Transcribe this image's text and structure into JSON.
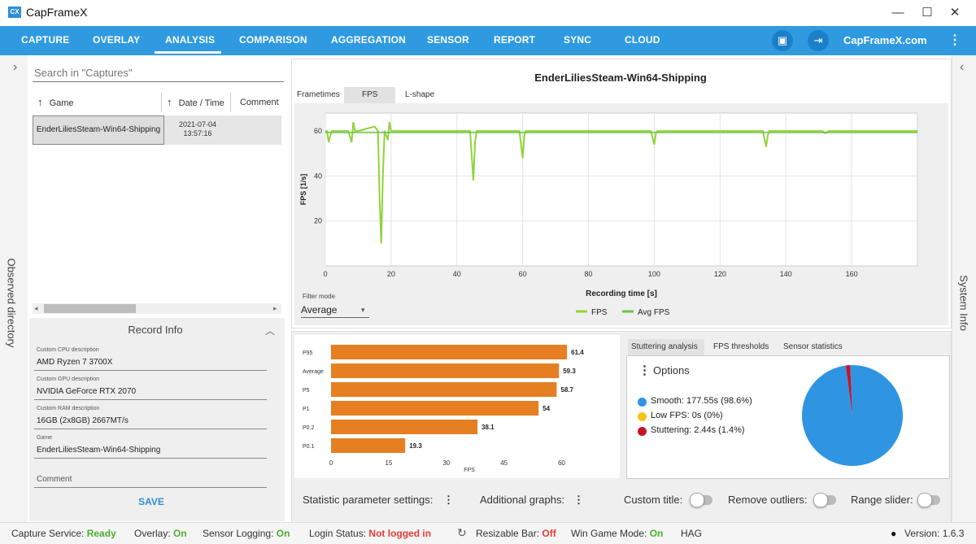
{
  "window": {
    "title": "CapFrameX",
    "logo_text": "CX",
    "minimize": "—",
    "maximize": "☐",
    "close": "✕"
  },
  "nav": {
    "items": [
      "CAPTURE",
      "OVERLAY",
      "ANALYSIS",
      "COMPARISON",
      "AGGREGATION",
      "SENSOR",
      "REPORT",
      "SYNC",
      "CLOUD"
    ],
    "active": "ANALYSIS",
    "site": "CapFrameX.com",
    "icon_copy": "▣",
    "icon_login": "⇥",
    "menu": "⋮"
  },
  "left": {
    "collapse_arrow": "›",
    "observed_directory": "Observed directory",
    "search_placeholder": "Search in \"Captures\"",
    "col_game": "Game",
    "col_date": "Date / Time",
    "col_comment": "Comment",
    "sort_arrow": "↑",
    "capture": {
      "game": "EnderLiliesSteam-Win64-Shipping",
      "date": "2021-07-04",
      "time": "13:57:16"
    },
    "scroll_left": "◂",
    "scroll_right": "▸",
    "record_info_title": "Record Info",
    "record_chevron": "︿",
    "fields": [
      {
        "label": "Custom CPU description",
        "value": "AMD Ryzen 7 3700X"
      },
      {
        "label": "Custom GPU description",
        "value": "NVIDIA GeForce RTX 2070"
      },
      {
        "label": "Custom RAM description",
        "value": "16GB (2x8GB) 2667MT/s"
      },
      {
        "label": "Game",
        "value": "EnderLiliesSteam-Win64-Shipping"
      },
      {
        "label": "",
        "value": "Comment"
      }
    ],
    "save": "SAVE"
  },
  "right": {
    "collapse_arrow": "‹",
    "system_info": "System Info"
  },
  "chart_tabs": [
    "Frametimes",
    "FPS",
    "L-shape"
  ],
  "filter": {
    "label": "Filter mode",
    "value": "Average",
    "arrow": "▾"
  },
  "line_legend": [
    "FPS",
    "Avg FPS"
  ],
  "stutter_tabs": [
    "Stuttering analysis",
    "FPS thresholds",
    "Sensor statistics"
  ],
  "options_label": "Options",
  "options_dots": "⋮",
  "stutter_legend": [
    {
      "label": "Smooth:  177.55s (98.6%)",
      "color": "#2f95e3"
    },
    {
      "label": "Low FPS:  0s (0%)",
      "color": "#f5c518"
    },
    {
      "label": "Stuttering:  2.44s (1.4%)",
      "color": "#c4152a"
    }
  ],
  "settings": {
    "statistic": "Statistic parameter settings:",
    "additional": "Additional graphs:",
    "custom_title": "Custom title:",
    "remove_outliers": "Remove outliers:",
    "range_slider": "Range slider:",
    "dots": "⋮"
  },
  "status": {
    "capture_label": "Capture Service:",
    "capture_value": "Ready",
    "overlay_label": "Overlay:",
    "overlay_value": "On",
    "sensor_label": "Sensor Logging:",
    "sensor_value": "On",
    "login_label": "Login Status:",
    "login_value": "Not logged in",
    "refresh_icon": "↻",
    "rebar_label": "Resizable Bar:",
    "rebar_value": "Off",
    "gamemode_label": "Win Game Mode:",
    "gamemode_value": "On",
    "hags_label": "HAG",
    "info_icon": "●",
    "version": "Version: 1.6.3"
  },
  "chart_data": [
    {
      "type": "line",
      "title": "EnderLiliesSteam-Win64-Shipping",
      "xlabel": "Recording time [s]",
      "ylabel": "FPS [1/s]",
      "xlim": [
        0,
        180
      ],
      "ylim": [
        0,
        68
      ],
      "xticks": [
        0,
        20,
        40,
        60,
        80,
        100,
        120,
        140,
        160
      ],
      "yticks": [
        20,
        40,
        60
      ],
      "grid": true,
      "legend": "bottom",
      "series": [
        {
          "name": "FPS",
          "color": "#8fd43a",
          "x": [
            0,
            0.5,
            1,
            1.5,
            2,
            3,
            5,
            7,
            8,
            8.5,
            9,
            10,
            15,
            16,
            16.5,
            17,
            17.5,
            18,
            19,
            19.5,
            20,
            21,
            30,
            40,
            44,
            45,
            45.5,
            46,
            50,
            59,
            60,
            60.5,
            61,
            70,
            99,
            100,
            100.5,
            101,
            110,
            133,
            134,
            134.5,
            135,
            140,
            151,
            152,
            153,
            160,
            170,
            180
          ],
          "y": [
            60,
            60,
            55,
            58,
            60,
            60,
            60,
            60,
            55,
            64,
            60,
            60,
            62,
            60,
            30,
            10,
            40,
            60,
            56,
            64,
            60,
            60,
            60,
            60,
            60,
            38,
            55,
            60,
            60,
            60,
            48,
            58,
            60,
            60,
            60,
            54,
            59,
            60,
            60,
            60,
            53,
            58,
            60,
            60,
            60,
            59,
            60,
            60,
            60,
            60
          ]
        },
        {
          "name": "Avg FPS",
          "color": "#6cc04a",
          "x": [
            0,
            180
          ],
          "y": [
            59.3,
            59.3
          ]
        }
      ]
    },
    {
      "type": "bar",
      "orientation": "horizontal",
      "xlabel": "FPS",
      "xlim": [
        0,
        62
      ],
      "xticks": [
        0,
        15,
        30,
        45,
        60
      ],
      "categories": [
        "P95",
        "Average",
        "P5",
        "P1",
        "P0.2",
        "P0.1"
      ],
      "values": [
        61.4,
        59.3,
        58.7,
        54,
        38.1,
        19.3
      ],
      "color": "#e67e22"
    },
    {
      "type": "pie",
      "categories": [
        "Smooth",
        "Low FPS",
        "Stuttering"
      ],
      "values": [
        98.6,
        0,
        1.4
      ],
      "colors": [
        "#2f95e3",
        "#f5c518",
        "#c4152a"
      ]
    }
  ]
}
